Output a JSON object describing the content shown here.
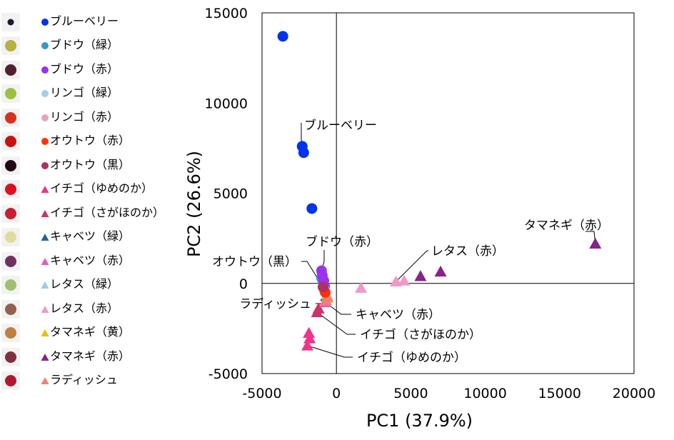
{
  "chart_data": {
    "type": "scatter",
    "title": "",
    "xlabel": "PC1 (37.9%)",
    "ylabel": "PC2 (26.6%)",
    "xlim": [
      -5000,
      20000
    ],
    "ylim": [
      -5000,
      15000
    ],
    "xticks": [
      -5000,
      0,
      5000,
      10000,
      15000,
      20000
    ],
    "yticks": [
      -5000,
      0,
      5000,
      10000,
      15000
    ],
    "xtick_labels": [
      "-5000",
      "0",
      "5000",
      "10000",
      "15000",
      "20000"
    ],
    "ytick_labels": [
      "-5000",
      "0",
      "5000",
      "10000",
      "15000"
    ],
    "grid": false,
    "legend_position": "left",
    "series": [
      {
        "name": "ブルーベリー",
        "marker": "circle",
        "color": "#0033ee",
        "points": [
          [
            -3600,
            13700
          ],
          [
            -2300,
            7600
          ],
          [
            -2200,
            7250
          ],
          [
            -1650,
            4150
          ]
        ]
      },
      {
        "name": "ブドウ（緑）",
        "marker": "circle",
        "color": "#3399cc",
        "points": [
          [
            -1000,
            300
          ],
          [
            -900,
            100
          ]
        ]
      },
      {
        "name": "ブドウ（赤）",
        "marker": "circle",
        "color": "#9933ee",
        "points": [
          [
            -1000,
            700
          ],
          [
            -950,
            450
          ],
          [
            -850,
            150
          ],
          [
            -800,
            -150
          ]
        ]
      },
      {
        "name": "リンゴ（緑）",
        "marker": "circle",
        "color": "#a6cce8",
        "points": [
          [
            -850,
            -300
          ]
        ]
      },
      {
        "name": "リンゴ（赤）",
        "marker": "circle",
        "color": "#e8a4b8",
        "points": [
          [
            -800,
            -400
          ]
        ]
      },
      {
        "name": "オウトウ（赤）",
        "marker": "circle",
        "color": "#ff3300",
        "points": [
          [
            -750,
            -500
          ]
        ]
      },
      {
        "name": "オウトウ（黒）",
        "marker": "circle",
        "color": "#b03060",
        "points": [
          [
            -900,
            -200
          ]
        ]
      },
      {
        "name": "イチゴ（ゆめのか）",
        "marker": "triangle",
        "color": "#ee3388",
        "points": [
          [
            -1850,
            -2750
          ],
          [
            -1800,
            -3050
          ],
          [
            -1950,
            -3450
          ]
        ]
      },
      {
        "name": "イチゴ（さがほのか）",
        "marker": "triangle",
        "color": "#cc3366",
        "points": [
          [
            -1300,
            -1600
          ],
          [
            -1200,
            -1400
          ]
        ]
      },
      {
        "name": "キャベツ（緑）",
        "marker": "triangle",
        "color": "#226699",
        "points": [
          [
            -700,
            -700
          ]
        ]
      },
      {
        "name": "キャベツ（赤）",
        "marker": "triangle",
        "color": "#ee55cc",
        "points": [
          [
            -750,
            -1050
          ]
        ]
      },
      {
        "name": "レタス（緑）",
        "marker": "triangle",
        "color": "#99ccee",
        "points": [
          [
            -650,
            -600
          ]
        ]
      },
      {
        "name": "レタス（赤）",
        "marker": "triangle",
        "color": "#f09ac8",
        "points": [
          [
            1650,
            -250
          ],
          [
            4000,
            100
          ],
          [
            4550,
            150
          ]
        ]
      },
      {
        "name": "タマネギ（黄）",
        "marker": "triangle",
        "color": "#f5b800",
        "points": [
          [
            -650,
            -800
          ]
        ]
      },
      {
        "name": "タマネギ（赤）",
        "marker": "triangle",
        "color": "#882288",
        "points": [
          [
            5650,
            400
          ],
          [
            7000,
            650
          ],
          [
            17400,
            2200
          ]
        ]
      },
      {
        "name": "ラディッシュ",
        "marker": "triangle",
        "color": "#f08070",
        "points": [
          [
            -700,
            -950
          ],
          [
            -600,
            -750
          ]
        ]
      }
    ],
    "annotations": [
      {
        "text": "ブルーベリー",
        "point": [
          -2300,
          7600
        ]
      },
      {
        "text": "ブドウ（赤）",
        "point": [
          -1000,
          700
        ]
      },
      {
        "text": "オウトウ（黒）",
        "point": [
          -900,
          -200
        ]
      },
      {
        "text": "ラディッシュ",
        "point": [
          -700,
          -950
        ]
      },
      {
        "text": "キャベツ（赤）",
        "point": [
          -750,
          -1050
        ]
      },
      {
        "text": "イチゴ（さがほのか）",
        "point": [
          -1300,
          -1600
        ]
      },
      {
        "text": "イチゴ（ゆめのか）",
        "point": [
          -1950,
          -3450
        ]
      },
      {
        "text": "レタス（赤）",
        "point": [
          4000,
          100
        ]
      },
      {
        "text": "タマネギ（赤）",
        "point": [
          17400,
          2200
        ]
      }
    ]
  },
  "legend": {
    "items": [
      {
        "label": "ブルーベリー",
        "marker": "circle",
        "color": "#0033ee",
        "icon": "blueberry-icon",
        "thumb_color": "#1a1a2e"
      },
      {
        "label": "ブドウ（緑）",
        "marker": "circle",
        "color": "#3399cc",
        "icon": "green-grape-icon",
        "thumb_color": "#b8b040"
      },
      {
        "label": "ブドウ（赤）",
        "marker": "circle",
        "color": "#9933ee",
        "icon": "red-grape-icon",
        "thumb_color": "#502030"
      },
      {
        "label": "リンゴ（緑）",
        "marker": "circle",
        "color": "#a6cce8",
        "icon": "green-apple-icon",
        "thumb_color": "#9cc040"
      },
      {
        "label": "リンゴ（赤）",
        "marker": "circle",
        "color": "#e8a4b8",
        "icon": "red-apple-icon",
        "thumb_color": "#d83020"
      },
      {
        "label": "オウトウ（赤）",
        "marker": "circle",
        "color": "#ff3300",
        "icon": "red-cherry-icon",
        "thumb_color": "#cc1010"
      },
      {
        "label": "オウトウ（黒）",
        "marker": "circle",
        "color": "#b03060",
        "icon": "black-cherry-icon",
        "thumb_color": "#200810"
      },
      {
        "label": "イチゴ（ゆめのか）",
        "marker": "triangle",
        "color": "#ee3388",
        "icon": "strawberry-yumenoka-icon",
        "thumb_color": "#dd1020"
      },
      {
        "label": "イチゴ（さがほのか）",
        "marker": "triangle",
        "color": "#cc3366",
        "icon": "strawberry-sagahonoka-icon",
        "thumb_color": "#c82030"
      },
      {
        "label": "キャベツ（緑）",
        "marker": "triangle",
        "color": "#226699",
        "icon": "green-cabbage-icon",
        "thumb_color": "#e0dca0"
      },
      {
        "label": "キャベツ（赤）",
        "marker": "triangle",
        "color": "#ee55cc",
        "icon": "red-cabbage-icon",
        "thumb_color": "#703060"
      },
      {
        "label": "レタス（緑）",
        "marker": "triangle",
        "color": "#99ccee",
        "icon": "green-lettuce-icon",
        "thumb_color": "#a0c070"
      },
      {
        "label": "レタス（赤）",
        "marker": "triangle",
        "color": "#f09ac8",
        "icon": "red-lettuce-icon",
        "thumb_color": "#906050"
      },
      {
        "label": "タマネギ（黄）",
        "marker": "triangle",
        "color": "#f5b800",
        "icon": "yellow-onion-icon",
        "thumb_color": "#c08040"
      },
      {
        "label": "タマネギ（赤）",
        "marker": "triangle",
        "color": "#882288",
        "icon": "red-onion-icon",
        "thumb_color": "#803040"
      },
      {
        "label": "ラディッシュ",
        "marker": "triangle",
        "color": "#f08070",
        "icon": "radish-icon",
        "thumb_color": "#b01830"
      }
    ]
  }
}
